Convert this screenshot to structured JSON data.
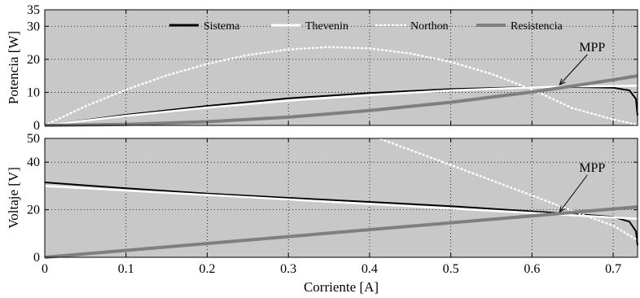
{
  "chart_data": [
    {
      "type": "line",
      "ylabel": "Potencia [W]",
      "xlim": [
        0,
        0.73
      ],
      "ylim": [
        0,
        35
      ],
      "yticks": [
        0,
        10,
        20,
        30,
        35
      ],
      "grid": true,
      "background": "#c8c8c8",
      "legend": {
        "position": "top",
        "orientation": "horizontal"
      },
      "series": [
        {
          "name": "Sistema",
          "color": "#000000",
          "style": "solid",
          "x": [
            0,
            0.1,
            0.2,
            0.3,
            0.4,
            0.5,
            0.6,
            0.65,
            0.7,
            0.72,
            0.728,
            0.73
          ],
          "y": [
            0,
            3.2,
            5.9,
            8.2,
            9.8,
            11.0,
            11.6,
            11.6,
            11.4,
            10.6,
            8.0,
            3.0
          ]
        },
        {
          "name": "Thevenin",
          "color": "#ffffff",
          "style": "solid",
          "x": [
            0,
            0.1,
            0.2,
            0.3,
            0.4,
            0.5,
            0.6,
            0.65,
            0.7,
            0.73
          ],
          "y": [
            0,
            2.9,
            5.4,
            7.5,
            9.2,
            10.6,
            11.5,
            11.8,
            11.9,
            12.0
          ]
        },
        {
          "name": "Northon",
          "color": "#ffffff",
          "style": "dotted",
          "x": [
            0,
            0.05,
            0.1,
            0.15,
            0.2,
            0.25,
            0.3,
            0.35,
            0.4,
            0.45,
            0.5,
            0.55,
            0.6,
            0.65,
            0.7,
            0.73
          ],
          "y": [
            0,
            5.8,
            10.8,
            15.1,
            18.6,
            21.3,
            23.0,
            23.7,
            23.3,
            21.8,
            19.2,
            15.6,
            10.9,
            5.2,
            1.8,
            0.2
          ]
        },
        {
          "name": "Resistencia",
          "color": "#7f7f7f",
          "style": "solid",
          "x": [
            0,
            0.1,
            0.2,
            0.3,
            0.4,
            0.5,
            0.6,
            0.65,
            0.7,
            0.73
          ],
          "y": [
            0,
            0.3,
            1.1,
            2.5,
            4.5,
            7.0,
            10.1,
            11.9,
            13.8,
            15.0
          ]
        }
      ],
      "annotations": [
        {
          "text": "MPP",
          "x": 0.632,
          "y": 11.8
        }
      ]
    },
    {
      "type": "line",
      "xlabel": "Corriente [A]",
      "ylabel": "Voltaje [V]",
      "xlim": [
        0,
        0.73
      ],
      "ylim": [
        0,
        50
      ],
      "xticks": [
        0,
        0.1,
        0.2,
        0.3,
        0.4,
        0.5,
        0.6,
        0.7
      ],
      "xtick_labels": [
        "0",
        "0.1",
        "0.2",
        "0.3",
        "0.4",
        "0.5",
        "0.6",
        "0.7"
      ],
      "yticks": [
        0,
        20,
        40,
        50
      ],
      "grid": true,
      "background": "#c8c8c8",
      "series": [
        {
          "name": "Sistema",
          "color": "#000000",
          "style": "solid",
          "x": [
            0,
            0.1,
            0.2,
            0.3,
            0.4,
            0.5,
            0.6,
            0.65,
            0.7,
            0.72,
            0.728,
            0.73
          ],
          "y": [
            31.5,
            29.0,
            26.8,
            25.0,
            23.3,
            21.5,
            19.3,
            18.3,
            17.0,
            15.0,
            11.0,
            5.0
          ]
        },
        {
          "name": "Thevenin",
          "color": "#ffffff",
          "style": "solid",
          "x": [
            0,
            0.73
          ],
          "y": [
            30.0,
            16.2
          ]
        },
        {
          "name": "Northon",
          "color": "#ffffff",
          "style": "dotted",
          "x": [
            0.4,
            0.5,
            0.6,
            0.65,
            0.7,
            0.73
          ],
          "y": [
            51.5,
            38.8,
            26.0,
            19.5,
            13.3,
            7.2
          ]
        },
        {
          "name": "Resistencia",
          "color": "#7f7f7f",
          "style": "solid",
          "x": [
            0,
            0.73
          ],
          "y": [
            0,
            21.2
          ]
        }
      ],
      "annotations": [
        {
          "text": "MPP",
          "x": 0.632,
          "y": 18.4
        }
      ]
    }
  ]
}
